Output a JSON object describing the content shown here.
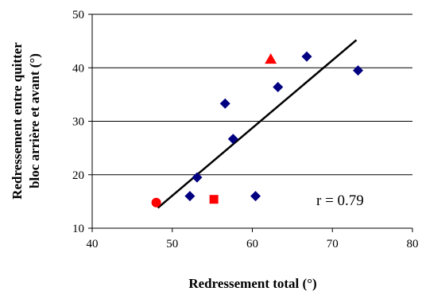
{
  "chart_data": {
    "type": "scatter",
    "xlabel": "Redressement total (°)",
    "ylabel_lines": [
      "Redressement entre quitter",
      "bloc arrière et avant (°)"
    ],
    "xlim": [
      40,
      80
    ],
    "ylim": [
      10,
      50
    ],
    "x_ticks": [
      40,
      50,
      60,
      70,
      80
    ],
    "y_ticks": [
      10,
      20,
      30,
      40,
      50
    ],
    "grid": "horizontal",
    "annotation": "r = 0.79",
    "points": [
      {
        "x": 52.2,
        "y": 16.0,
        "marker": "diamond",
        "color": "#000080"
      },
      {
        "x": 53.1,
        "y": 19.5,
        "marker": "diamond",
        "color": "#000080"
      },
      {
        "x": 56.6,
        "y": 33.3,
        "marker": "diamond",
        "color": "#000080"
      },
      {
        "x": 57.6,
        "y": 26.7,
        "marker": "diamond",
        "color": "#000080"
      },
      {
        "x": 60.4,
        "y": 16.0,
        "marker": "diamond",
        "color": "#000080"
      },
      {
        "x": 63.2,
        "y": 36.4,
        "marker": "diamond",
        "color": "#000080"
      },
      {
        "x": 66.8,
        "y": 42.1,
        "marker": "diamond",
        "color": "#000080"
      },
      {
        "x": 73.2,
        "y": 39.5,
        "marker": "diamond",
        "color": "#000080"
      },
      {
        "x": 48.0,
        "y": 14.8,
        "marker": "circle",
        "color": "#ff0000"
      },
      {
        "x": 55.2,
        "y": 15.4,
        "marker": "square",
        "color": "#ff0000"
      },
      {
        "x": 62.3,
        "y": 41.6,
        "marker": "triangle",
        "color": "#ff0000"
      }
    ],
    "trendline": {
      "x": [
        48.2,
        73.0
      ],
      "y": [
        13.8,
        45.2
      ],
      "color": "#000000"
    }
  }
}
